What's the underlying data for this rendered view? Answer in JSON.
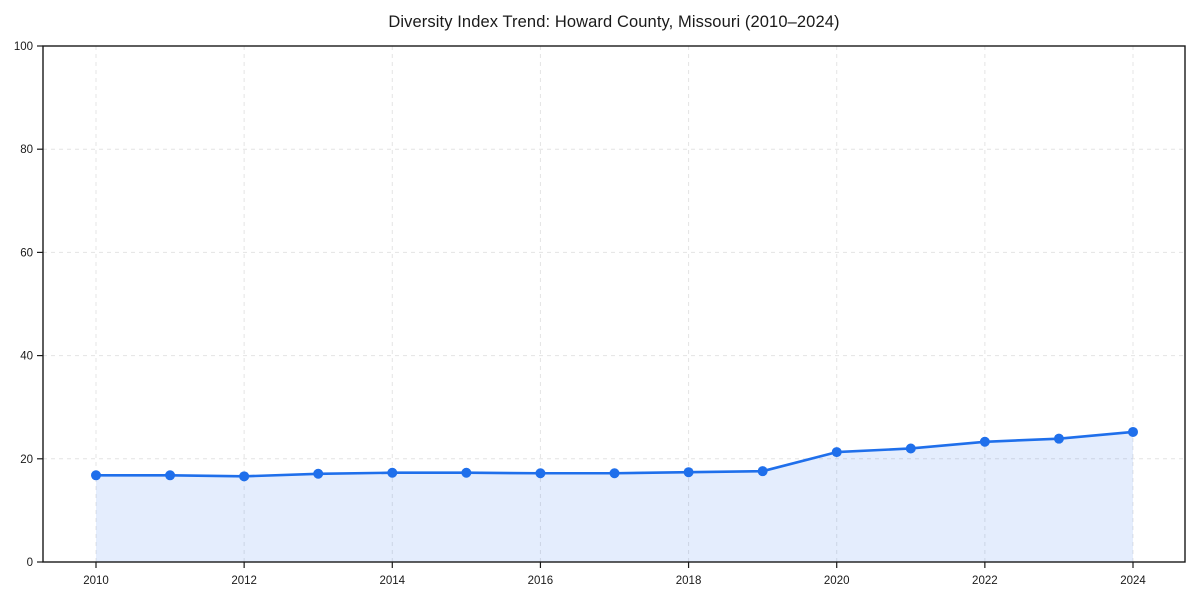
{
  "figure": {
    "background_color": "#ffffff",
    "border_color": "#1a1a1a",
    "grid_color": "#e4e4e4"
  },
  "chart_data": {
    "type": "area",
    "title": "Diversity Index Trend: Howard County, Missouri (2010–2024)",
    "xlabel": "",
    "ylabel": "",
    "x": [
      2010,
      2011,
      2012,
      2013,
      2014,
      2015,
      2016,
      2017,
      2018,
      2019,
      2020,
      2021,
      2022,
      2023,
      2024
    ],
    "values": [
      16.8,
      16.8,
      16.6,
      17.1,
      17.3,
      17.3,
      17.2,
      17.2,
      17.4,
      17.6,
      21.3,
      22.0,
      23.3,
      23.9,
      25.2
    ],
    "series_name": "Diversity Index",
    "ylim": [
      0,
      100
    ],
    "xlim": [
      2009.3,
      2024.7
    ],
    "yticks": [
      0,
      20,
      40,
      60,
      80,
      100
    ],
    "xticks": [
      2010,
      2012,
      2014,
      2016,
      2018,
      2020,
      2022,
      2024
    ],
    "grid": true,
    "grid_style": "dashed",
    "legend_position": "none",
    "marker": "circle",
    "marker_radius": 5,
    "line_width": 2.6,
    "line_color": "#1f6feb",
    "fill_color": "#1f6feb",
    "fill_opacity": 0.12
  }
}
